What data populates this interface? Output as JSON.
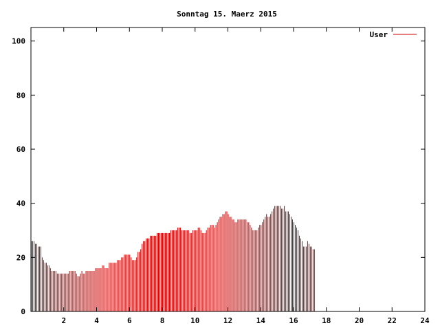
{
  "chart_data": {
    "type": "bar",
    "title": "Sonntag 15. Maerz 2015",
    "xlabel": "",
    "ylabel": "",
    "xlim": [
      0,
      24
    ],
    "ylim": [
      0,
      105
    ],
    "x_ticks": [
      2,
      4,
      6,
      8,
      10,
      12,
      14,
      16,
      18,
      20,
      22,
      24
    ],
    "y_ticks": [
      0,
      20,
      40,
      60,
      80,
      100
    ],
    "grid": false,
    "legend_position": "top-right",
    "series_color": "#cc0000",
    "series": [
      {
        "name": "User",
        "interval_minutes": 5,
        "values": [
          26,
          26,
          26,
          25,
          25,
          24,
          24,
          24,
          20,
          19,
          18,
          18,
          17,
          17,
          16,
          15,
          15,
          15,
          15,
          14,
          14,
          14,
          14,
          14,
          14,
          14,
          14,
          14,
          15,
          15,
          15,
          15,
          15,
          14,
          13,
          13,
          14,
          15,
          14,
          14,
          15,
          15,
          15,
          15,
          15,
          15,
          15,
          16,
          16,
          16,
          16,
          16,
          17,
          17,
          16,
          16,
          16,
          18,
          18,
          18,
          18,
          18,
          18,
          19,
          19,
          19,
          20,
          20,
          21,
          21,
          21,
          21,
          21,
          20,
          19,
          19,
          19,
          20,
          22,
          22,
          23,
          25,
          26,
          26,
          27,
          27,
          27,
          28,
          28,
          28,
          28,
          28,
          29,
          29,
          29,
          29,
          29,
          29,
          29,
          29,
          29,
          29,
          30,
          30,
          30,
          30,
          30,
          31,
          31,
          31,
          30,
          30,
          30,
          30,
          30,
          30,
          29,
          29,
          30,
          30,
          30,
          30,
          31,
          31,
          30,
          29,
          29,
          29,
          30,
          31,
          31,
          32,
          32,
          32,
          31,
          32,
          33,
          34,
          35,
          35,
          36,
          36,
          37,
          37,
          36,
          35,
          35,
          34,
          34,
          33,
          33,
          34,
          34,
          34,
          34,
          34,
          34,
          34,
          33,
          33,
          32,
          31,
          30,
          30,
          30,
          30,
          31,
          32,
          32,
          33,
          34,
          35,
          36,
          35,
          35,
          36,
          37,
          38,
          39,
          39,
          39,
          39,
          39,
          38,
          38,
          39,
          37,
          37,
          37,
          36,
          35,
          34,
          33,
          32,
          31,
          30,
          28,
          27,
          26,
          24,
          24,
          24,
          26,
          25,
          24,
          24,
          23,
          23
        ]
      }
    ]
  }
}
